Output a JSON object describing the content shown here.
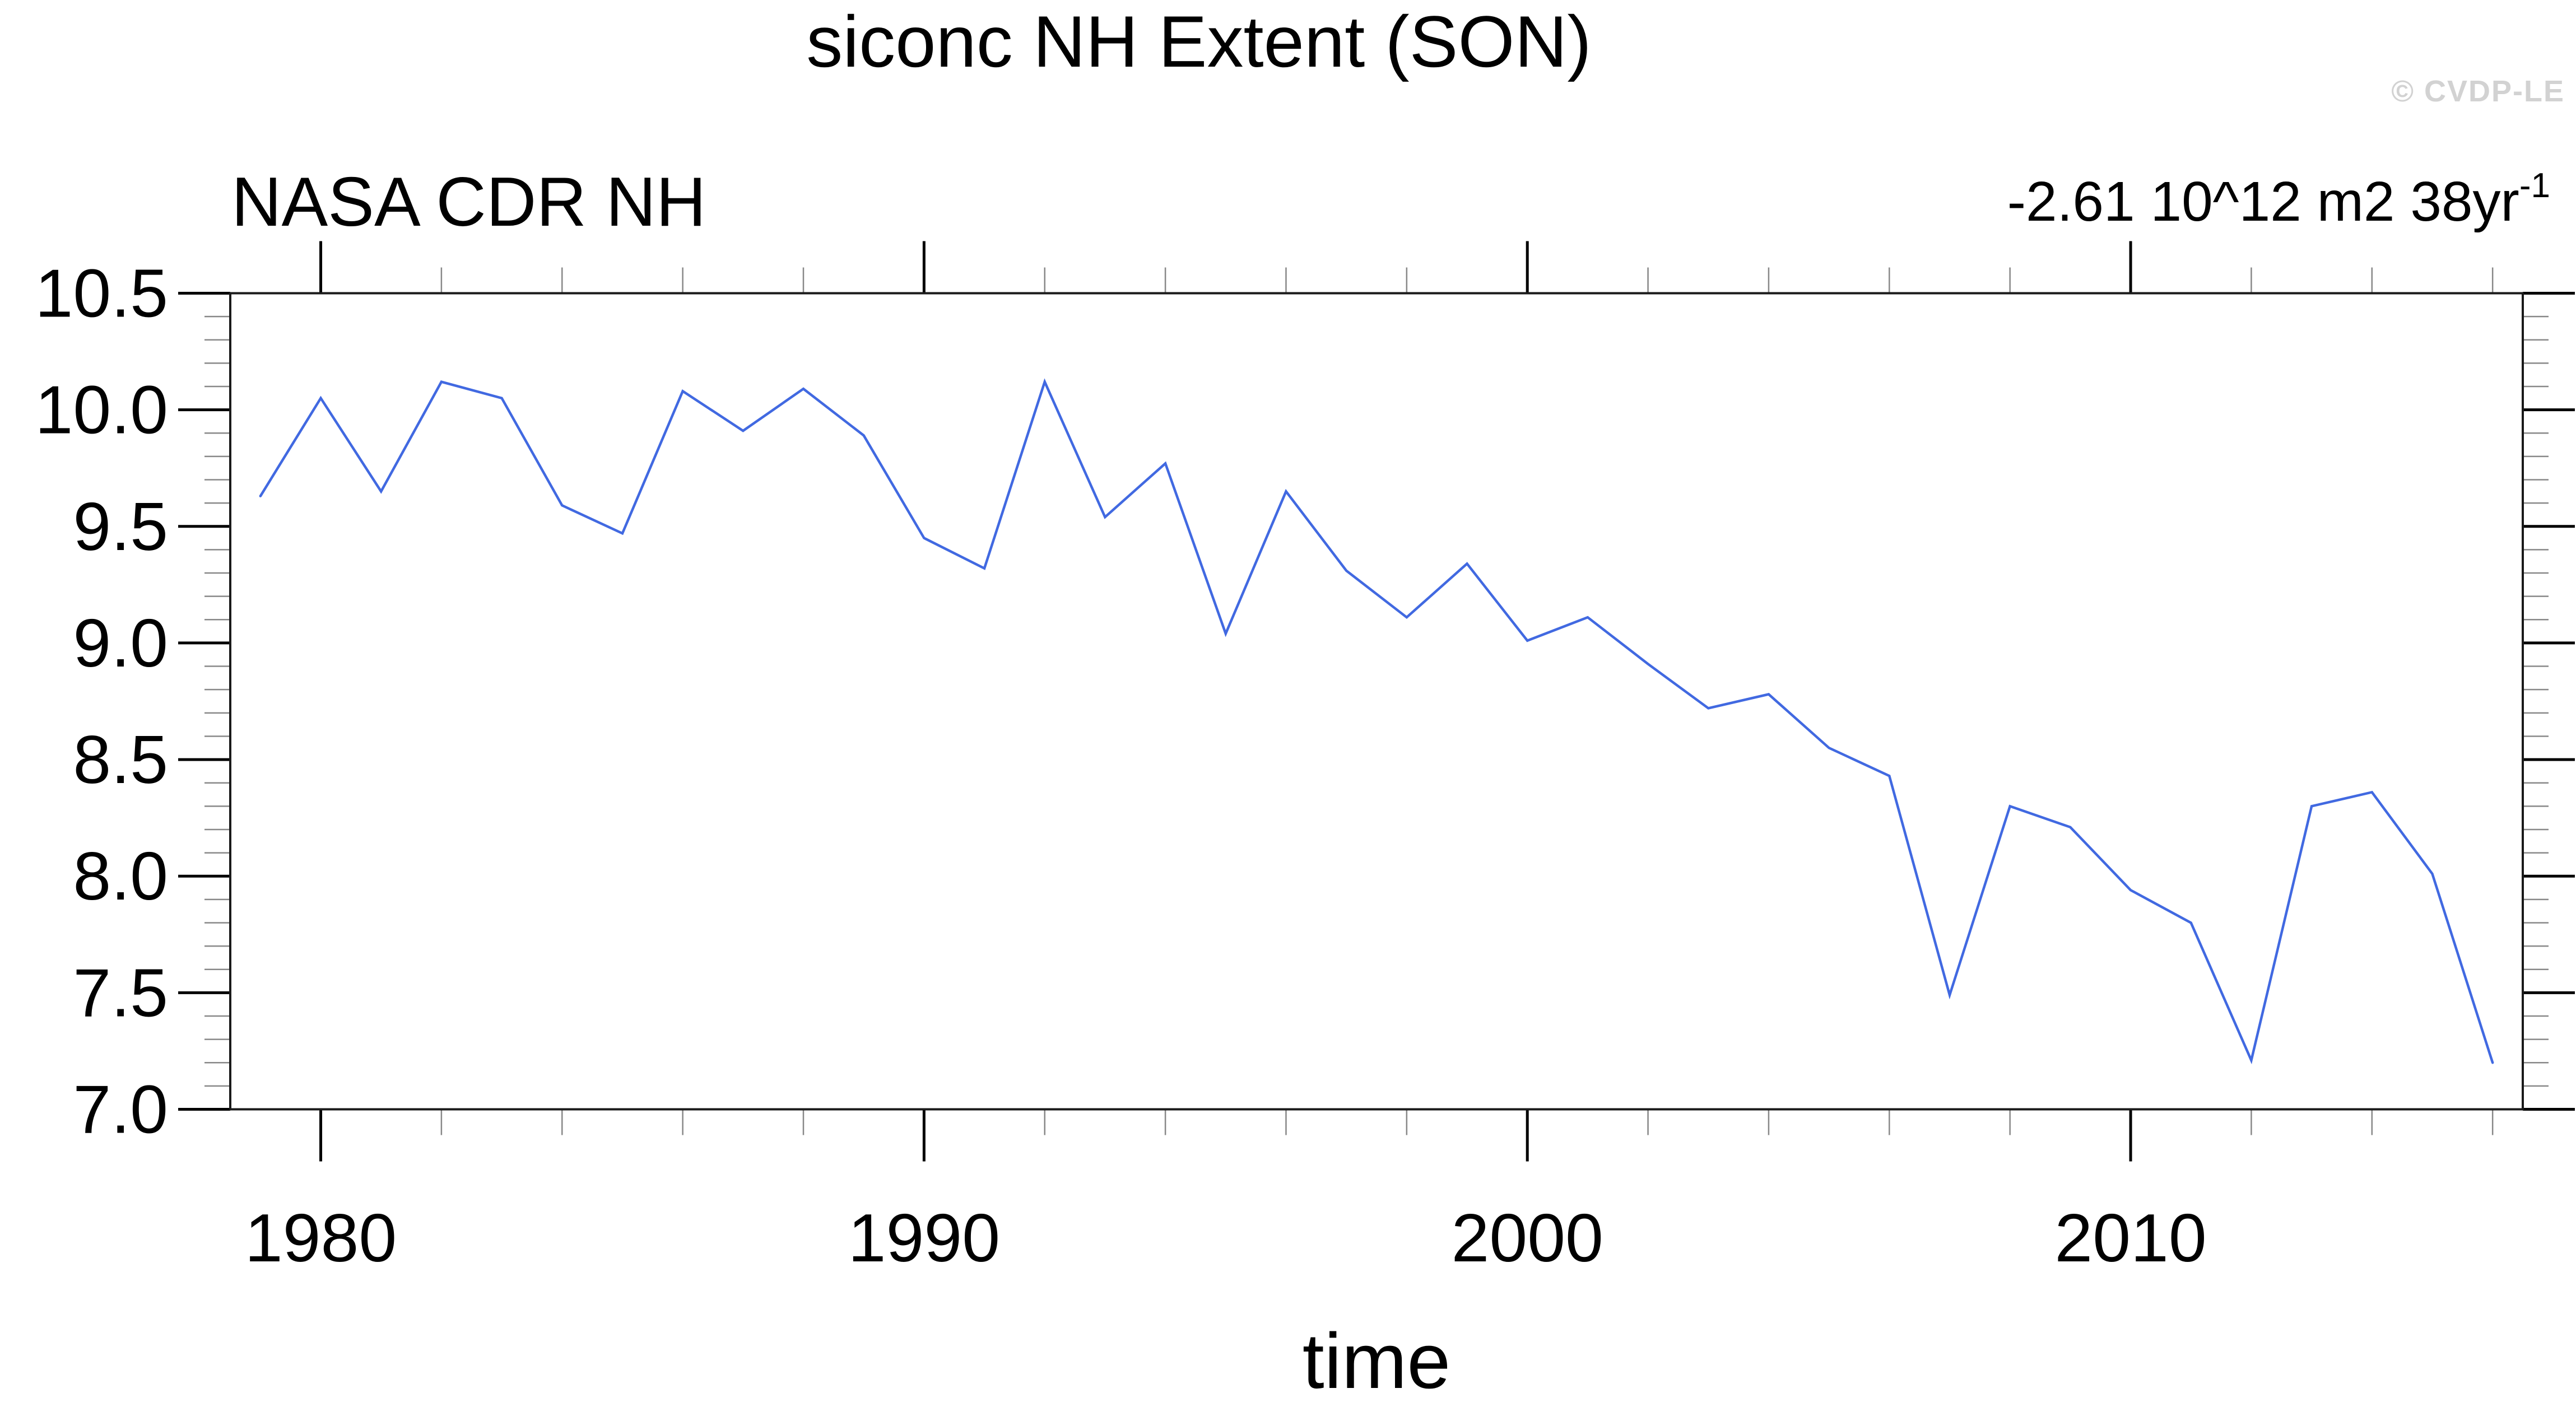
{
  "header": {
    "watermark": "© CVDP-LE"
  },
  "annotation": {
    "trend_text": "-2.61 10^12 m2 38yr",
    "trend_sup": "-1"
  },
  "chart_data": {
    "type": "line",
    "title": "siconc NH Extent (SON)",
    "subtitle_left": "NASA CDR NH",
    "xlabel": "time",
    "ylabel": "",
    "trend_annotation": "-2.61 10^12 m2 38yr^-1",
    "grid": false,
    "legend_position": "none",
    "xlim": [
      1978.5,
      2016.5
    ],
    "ylim": [
      7.0,
      10.5
    ],
    "x_minor_step": 2,
    "y_minor_step": 0.1,
    "x_major_ticks": [
      {
        "value": 1980,
        "label": "1980"
      },
      {
        "value": 1990,
        "label": "1990"
      },
      {
        "value": 2000,
        "label": "2000"
      },
      {
        "value": 2010,
        "label": "2010"
      }
    ],
    "y_major_ticks": [
      {
        "value": 7.0,
        "label": "7.0"
      },
      {
        "value": 7.5,
        "label": "7.5"
      },
      {
        "value": 8.0,
        "label": "8.0"
      },
      {
        "value": 8.5,
        "label": "8.5"
      },
      {
        "value": 9.0,
        "label": "9.0"
      },
      {
        "value": 9.5,
        "label": "9.5"
      },
      {
        "value": 10.0,
        "label": "10.0"
      },
      {
        "value": 10.5,
        "label": "10.5"
      }
    ],
    "x": [
      1979,
      1980,
      1981,
      1982,
      1983,
      1984,
      1985,
      1986,
      1987,
      1988,
      1989,
      1990,
      1991,
      1992,
      1993,
      1994,
      1995,
      1996,
      1997,
      1998,
      1999,
      2000,
      2001,
      2002,
      2003,
      2004,
      2005,
      2006,
      2007,
      2008,
      2009,
      2010,
      2011,
      2012,
      2013,
      2014,
      2015,
      2016
    ],
    "series": [
      {
        "name": "NASA CDR NH",
        "color": "#4169E1",
        "values": [
          9.63,
          10.05,
          9.65,
          10.12,
          10.05,
          9.59,
          9.47,
          10.08,
          9.91,
          10.09,
          9.89,
          9.45,
          9.32,
          10.12,
          9.54,
          9.77,
          9.04,
          9.65,
          9.31,
          9.11,
          9.34,
          9.01,
          9.11,
          8.91,
          8.72,
          8.78,
          8.55,
          8.43,
          7.49,
          8.3,
          8.21,
          7.94,
          7.8,
          7.21,
          8.3,
          8.36,
          8.01,
          7.2
        ]
      }
    ],
    "colors": {
      "axis": "#000000",
      "minor_tick": "#888888",
      "frame": "#1a1a1a"
    }
  }
}
